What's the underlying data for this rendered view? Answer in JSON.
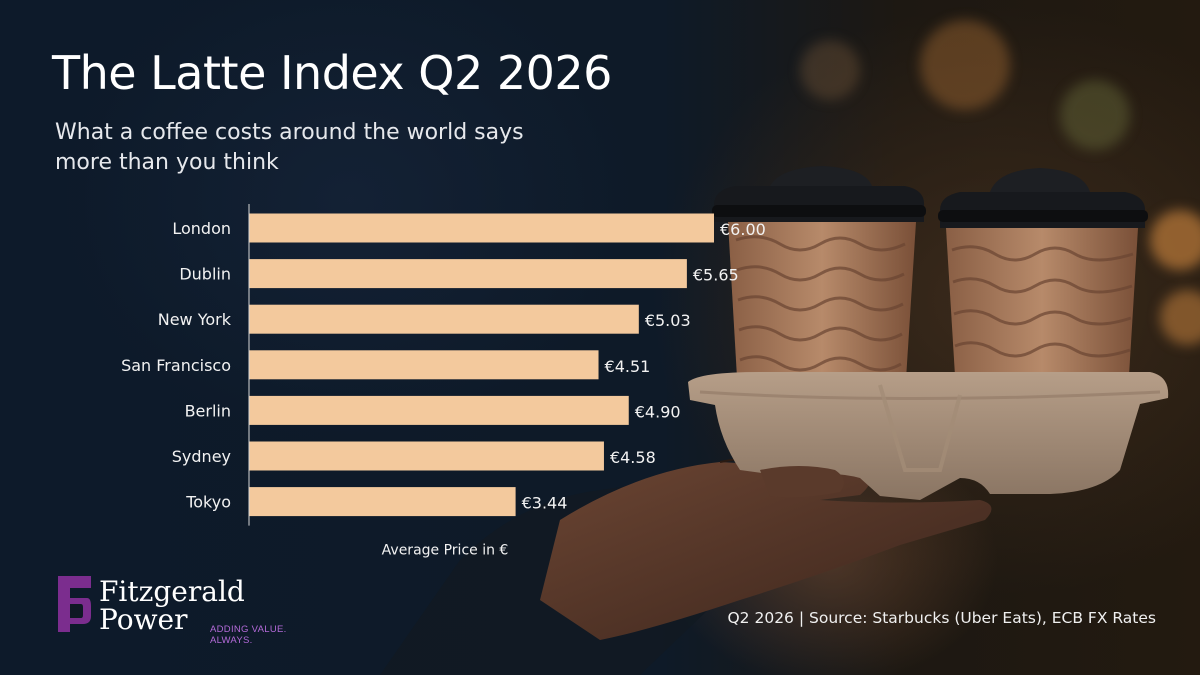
{
  "title": "The Latte Index Q2 2026",
  "subtitle": "What a coffee costs around the world says more than you think",
  "chart_data": {
    "type": "bar",
    "orientation": "horizontal",
    "categories": [
      "London",
      "Dublin",
      "New York",
      "San Francisco",
      "Berlin",
      "Sydney",
      "Tokyo"
    ],
    "values": [
      6.0,
      5.65,
      5.03,
      4.51,
      4.9,
      4.58,
      3.44
    ],
    "value_labels": [
      "€6.00",
      "€5.65",
      "€5.03",
      "€4.51",
      "€4.90",
      "€4.58",
      "€3.44"
    ],
    "xlabel": "Average Price in €",
    "ylabel": "",
    "xlim": [
      0,
      6
    ],
    "grid": false,
    "bar_color": "#f3c99d"
  },
  "logo": {
    "name_line1": "Fitzgerald",
    "name_line2": "Power",
    "tagline_line1": "ADDING VALUE.",
    "tagline_line2": "ALWAYS.",
    "color": "#7b2d8e"
  },
  "source": "Q2 2026 | Source: Starbucks (Uber Eats), ECB FX Rates"
}
